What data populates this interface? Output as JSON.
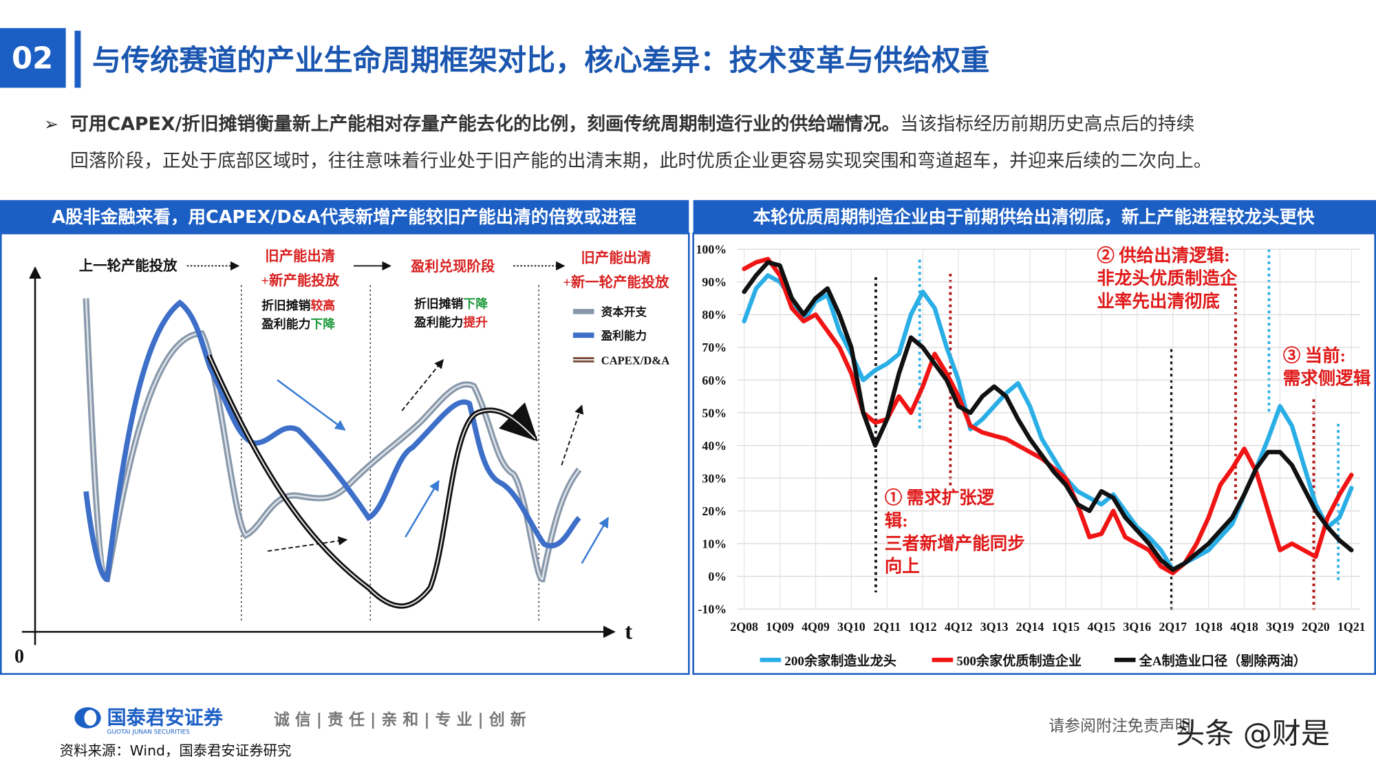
{
  "header": {
    "number": "02",
    "title": "与传统赛道的产业生命周期框架对比，核心差异：技术变革与供给权重"
  },
  "bullet": {
    "bold": "可用CAPEX/折旧摊销衡量新上产能相对存量产能去化的比例，刻画传统周期制造行业的供给端情况。",
    "line1": "当该指标经历前期历史高点后的持续",
    "line2": "回落阶段，正处于底部区域时，往往意味着行业处于旧产能的出清末期，此时优质企业更容易实现突围和弯道超车，并迎来后续的二次向上。"
  },
  "left_panel": {
    "title": "A股非金融来看，用CAPEX/D&A代表新增产能较旧产能出清的倍数或进程",
    "stages": [
      [
        "上一轮产能投放"
      ],
      [
        "旧产能出清",
        "+新产能投放"
      ],
      [
        "盈利兑现阶段"
      ],
      [
        "旧产能出清",
        "+新一轮产能投放"
      ]
    ],
    "notes": [
      [
        "折旧摊销",
        "较高"
      ],
      [
        "盈利能力",
        "下降"
      ],
      [
        "折旧摊销",
        "下降"
      ],
      [
        "盈利能力",
        "提升"
      ]
    ],
    "legend": [
      "资本开支",
      "盈利能力",
      "CAPEX/D&A"
    ],
    "axis_x": "t",
    "origin": "0"
  },
  "chart_data": {
    "type": "line",
    "title": "本轮优质周期制造企业由于前期供给出清彻底，新上产能进程较龙头更快",
    "categories": [
      "2Q08",
      null,
      null,
      "1Q09",
      null,
      null,
      "4Q09",
      null,
      null,
      "3Q10",
      null,
      null,
      "2Q11",
      null,
      null,
      "1Q12",
      null,
      null,
      "4Q12",
      null,
      null,
      "3Q13",
      null,
      null,
      "2Q14",
      null,
      null,
      "1Q15",
      null,
      null,
      "4Q15",
      null,
      null,
      "3Q16",
      null,
      null,
      "2Q17",
      null,
      null,
      "1Q18",
      null,
      null,
      "4Q18",
      null,
      null,
      "3Q19",
      null,
      null,
      "2Q20",
      null,
      null,
      "1Q21"
    ],
    "series": [
      {
        "name": "200余家制造业龙头",
        "color": "#2aaee6",
        "values": [
          78,
          88,
          92,
          90,
          85,
          78,
          84,
          86,
          75,
          68,
          60,
          63,
          65,
          68,
          80,
          87,
          82,
          70,
          60,
          45,
          48,
          52,
          56,
          59,
          52,
          42,
          36,
          30,
          26,
          24,
          22,
          25,
          20,
          15,
          12,
          8,
          2,
          4,
          6,
          8,
          12,
          16,
          25,
          33,
          42,
          52,
          46,
          34,
          22,
          15,
          18,
          27
        ]
      },
      {
        "name": "500余家优质制造企业",
        "color": "#f01414",
        "values": [
          94,
          96,
          97,
          92,
          82,
          78,
          80,
          75,
          70,
          62,
          50,
          47,
          48,
          55,
          50,
          58,
          68,
          62,
          55,
          46,
          44,
          43,
          42,
          40,
          38,
          36,
          33,
          30,
          22,
          12,
          13,
          20,
          12,
          10,
          8,
          3,
          1,
          4,
          10,
          18,
          28,
          33,
          39,
          32,
          20,
          8,
          10,
          8,
          6,
          18,
          25,
          31
        ]
      },
      {
        "name": "全A制造业口径（剔除两油）",
        "color": "#111111",
        "values": [
          87,
          92,
          96,
          95,
          85,
          80,
          85,
          88,
          80,
          70,
          50,
          40,
          48,
          62,
          73,
          70,
          65,
          60,
          52,
          50,
          55,
          58,
          55,
          48,
          42,
          37,
          32,
          28,
          22,
          20,
          26,
          24,
          18,
          14,
          10,
          5,
          2,
          4,
          7,
          10,
          14,
          18,
          25,
          33,
          38,
          38,
          34,
          27,
          20,
          15,
          11,
          8
        ]
      }
    ],
    "ylim": [
      -10,
      100
    ],
    "yticks": [
      {
        "value": -10,
        "label": "-10%"
      },
      {
        "value": 0,
        "label": "0%"
      },
      {
        "value": 10,
        "label": "10%"
      },
      {
        "value": 20,
        "label": "20%"
      },
      {
        "value": 30,
        "label": "30%"
      },
      {
        "value": 40,
        "label": "40%"
      },
      {
        "value": 50,
        "label": "50%"
      },
      {
        "value": 60,
        "label": "60%"
      },
      {
        "value": 70,
        "label": "70%"
      },
      {
        "value": 80,
        "label": "80%"
      },
      {
        "value": 90,
        "label": "90%"
      },
      {
        "value": 100,
        "label": "100%"
      }
    ],
    "grid": true,
    "annotations": [
      [
        "② 供给出清逻辑:",
        "非龙头优质制造企",
        "业率先出清彻底"
      ],
      [
        "③ 当前:",
        "需求侧逻辑"
      ],
      [
        "① 需求扩张逻",
        "辑:",
        "三者新增产能同步",
        "向上"
      ]
    ]
  },
  "footer": {
    "company": "国泰君安证券",
    "company_en": "GUOTAI JUNAN SECURITIES",
    "slogan": "诚 信 | 责 任 | 亲 和 | 专 业 | 创 新",
    "source": "资料来源：Wind，国泰君安证券研究",
    "disclaimer": "请参阅附注免责声明",
    "watermark": "头条 @财是"
  }
}
